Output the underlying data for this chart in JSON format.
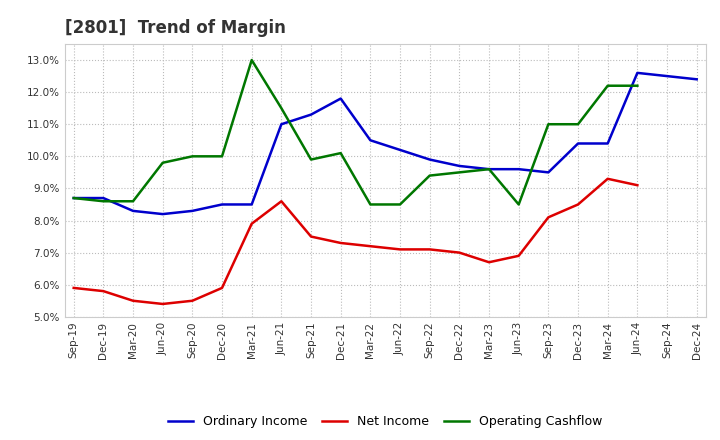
{
  "title": "[2801]  Trend of Margin",
  "x_labels": [
    "Sep-19",
    "Dec-19",
    "Mar-20",
    "Jun-20",
    "Sep-20",
    "Dec-20",
    "Mar-21",
    "Jun-21",
    "Sep-21",
    "Dec-21",
    "Mar-22",
    "Jun-22",
    "Sep-22",
    "Dec-22",
    "Mar-23",
    "Jun-23",
    "Sep-23",
    "Dec-23",
    "Mar-24",
    "Jun-24",
    "Sep-24",
    "Dec-24"
  ],
  "ordinary_income": [
    0.087,
    0.087,
    0.083,
    0.082,
    0.083,
    0.085,
    0.085,
    0.11,
    0.113,
    0.118,
    0.105,
    0.102,
    0.099,
    0.097,
    0.096,
    0.096,
    0.095,
    0.104,
    0.104,
    0.126,
    0.125,
    0.124
  ],
  "net_income": [
    0.059,
    0.058,
    0.055,
    0.054,
    0.055,
    0.059,
    0.079,
    0.086,
    0.075,
    0.073,
    0.072,
    0.071,
    0.071,
    0.07,
    0.067,
    0.069,
    0.081,
    0.085,
    0.093,
    0.091,
    null,
    null
  ],
  "operating_cashflow": [
    0.087,
    0.086,
    0.086,
    0.098,
    0.1,
    0.1,
    0.13,
    0.115,
    0.099,
    0.101,
    0.085,
    0.085,
    0.094,
    0.095,
    0.096,
    0.085,
    0.11,
    0.11,
    0.122,
    0.122,
    null,
    null
  ],
  "ylim_min": 0.05,
  "ylim_max": 0.135,
  "yticks": [
    0.05,
    0.06,
    0.07,
    0.08,
    0.09,
    0.1,
    0.11,
    0.12,
    0.13
  ],
  "line_color_ordinary": "#0000cc",
  "line_color_net": "#dd0000",
  "line_color_cashflow": "#007700",
  "background_color": "#ffffff",
  "grid_color": "#bbbbbb",
  "title_color": "#333333",
  "title_fontsize": 12,
  "tick_fontsize": 7.5,
  "legend_fontsize": 9
}
